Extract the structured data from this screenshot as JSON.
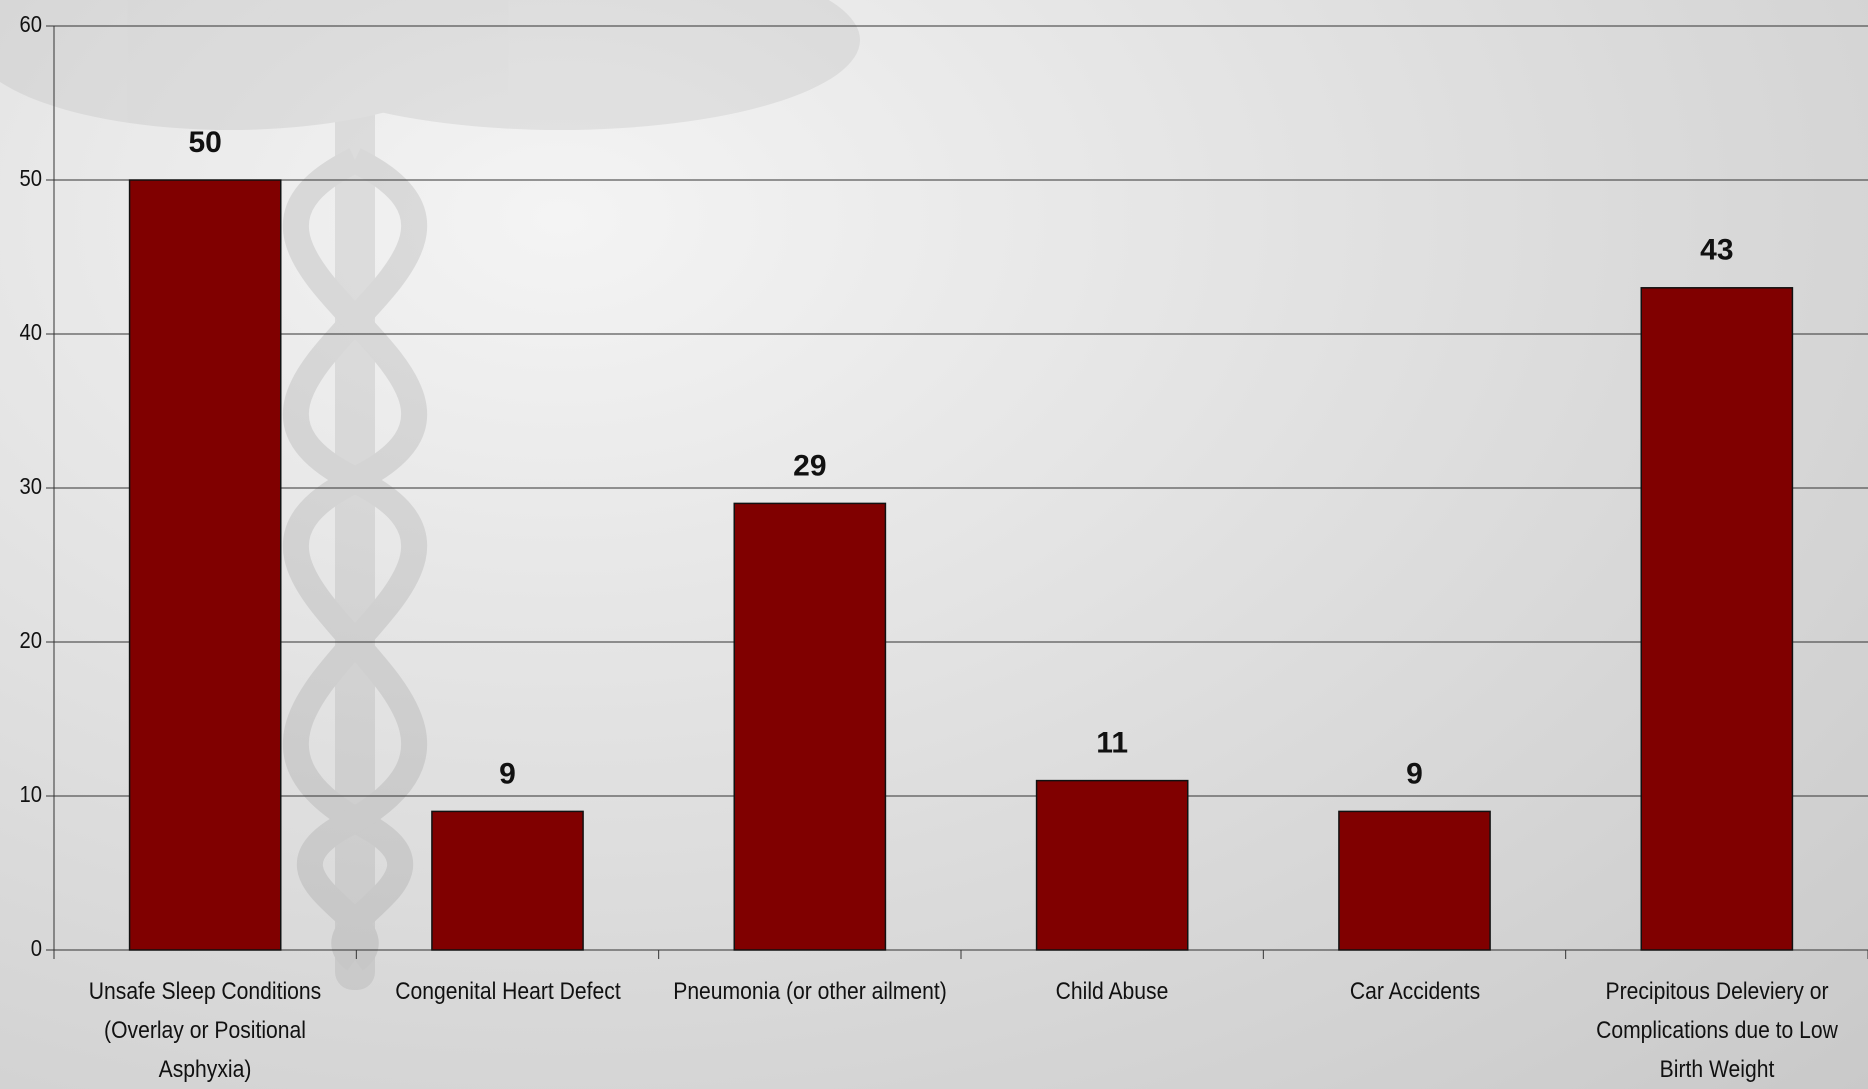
{
  "chart_data": {
    "type": "bar",
    "categories": [
      "Unsafe Sleep Conditions (Overlay or Positional Asphyxia)",
      "Congenital Heart Defect",
      "Pneumonia (or other ailment)",
      "Child Abuse",
      "Car Accidents",
      "Precipitous Deleviery or Complications due to Low Birth Weight"
    ],
    "values": [
      50,
      9,
      29,
      11,
      9,
      43
    ],
    "color": "#800000",
    "ylim": [
      0,
      60
    ],
    "yticks": [
      0,
      10,
      20,
      30,
      40,
      50,
      60
    ],
    "grid": true
  }
}
